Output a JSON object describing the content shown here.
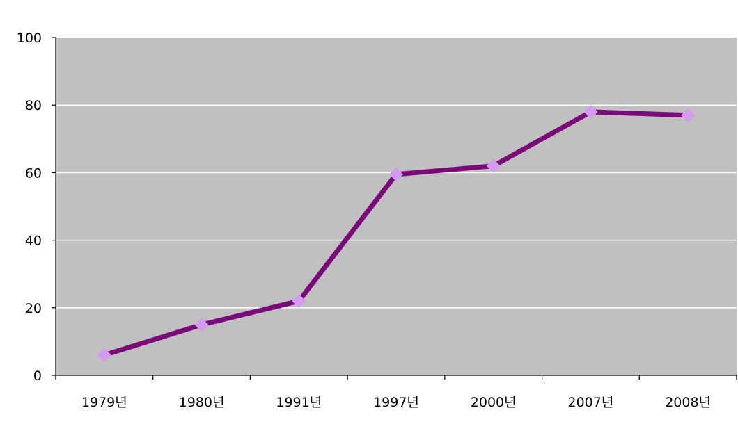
{
  "chart_data": {
    "type": "line",
    "categories": [
      "1979년",
      "1980년",
      "1991년",
      "1997년",
      "2000년",
      "2007년",
      "2008년"
    ],
    "series": [
      {
        "values": [
          6,
          15,
          22,
          59.5,
          62,
          78,
          77
        ],
        "line_color": "#7a0a7a",
        "marker_color": "#d49af2",
        "marker": "diamond"
      }
    ],
    "ylim": [
      0,
      100
    ],
    "yticks": [
      0,
      20,
      40,
      60,
      80,
      100
    ],
    "title": "",
    "xlabel": "",
    "ylabel": "",
    "grid": true,
    "legend": "none",
    "plot_background": "#c0c0c0",
    "grid_color": "#ffffff"
  }
}
